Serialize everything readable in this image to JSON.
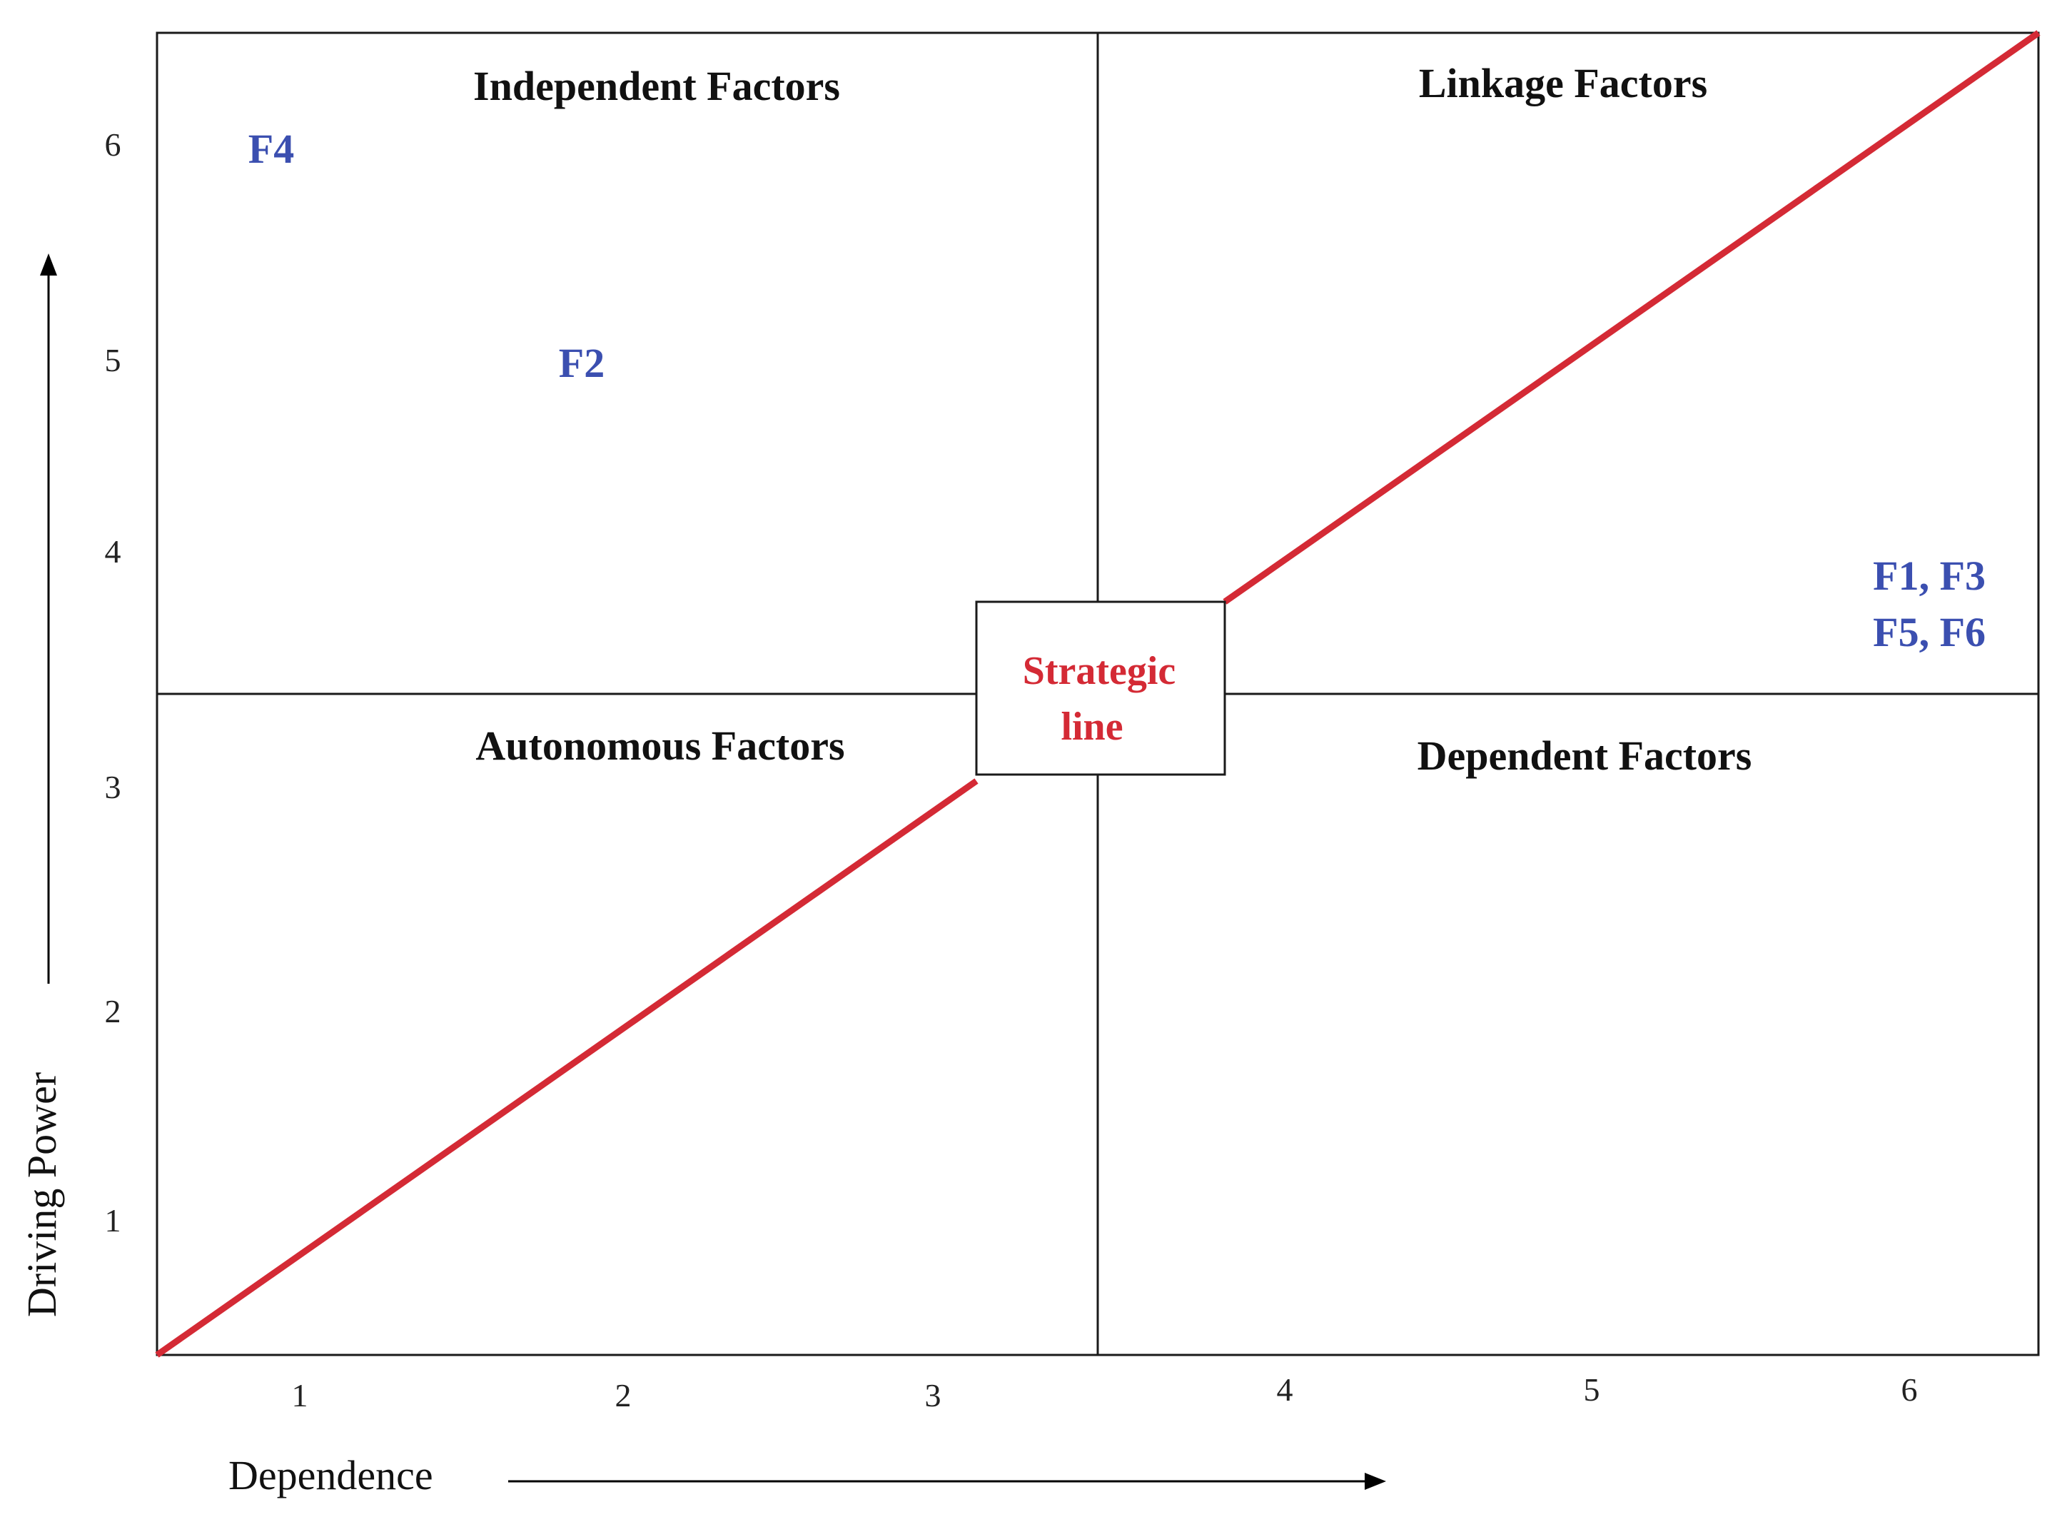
{
  "chart_data": {
    "type": "scatter",
    "title": "",
    "xlabel": "Dependence",
    "ylabel": "Driving Power",
    "xlim": [
      0.5,
      6.5
    ],
    "ylim": [
      0.5,
      6.5
    ],
    "x_ticks": [
      1,
      2,
      3,
      4,
      5,
      6
    ],
    "y_ticks": [
      1,
      2,
      3,
      4,
      5,
      6
    ],
    "x_divider": 3.5,
    "y_divider": 3.5,
    "quadrants": {
      "top_left": "Independent Factors",
      "top_right": "Linkage Factors",
      "bottom_left": "Autonomous Factors",
      "bottom_right": "Dependent Factors"
    },
    "points": [
      {
        "label": "F4",
        "x": 1,
        "y": 6
      },
      {
        "label": "F2",
        "x": 2,
        "y": 5
      },
      {
        "label": "F1, F3",
        "x": 6,
        "y": 4
      },
      {
        "label": "F5, F6",
        "x": 6,
        "y": 4
      }
    ],
    "strategic_line": {
      "label_line1": "Strategic",
      "label_line2": "line",
      "from": [
        0.5,
        0.5
      ],
      "to": [
        6.5,
        6.5
      ]
    },
    "colors": {
      "points": "#3b4fb0",
      "strategic_line": "#d42a35",
      "frame": "#1a1a1a"
    },
    "grid": false
  }
}
